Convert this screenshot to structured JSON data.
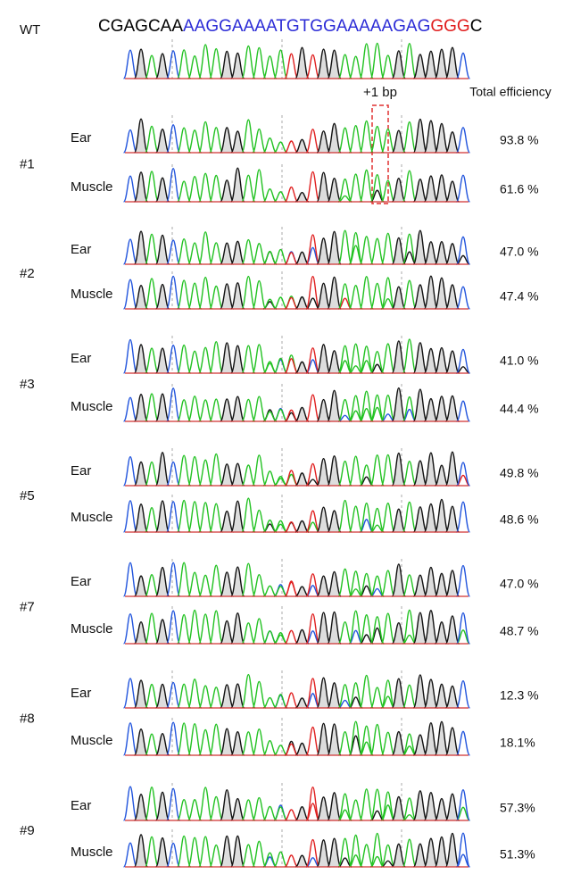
{
  "sequence": {
    "segments": [
      {
        "text": "CGAGCAA",
        "color": "#000000"
      },
      {
        "text": "AAGGAAAATGTGGAAAAAGAG",
        "color": "#2b2bd6"
      },
      {
        "text": "GGG",
        "color": "#e01b1b"
      },
      {
        "text": "C",
        "color": "#000000"
      }
    ]
  },
  "wt_label": "WT",
  "insertion_label": "+1 bp",
  "efficiency_header": "Total efficiency",
  "samples": [
    {
      "id": "#1",
      "rows": [
        {
          "tissue": "Ear",
          "efficiency": "93.8 %"
        },
        {
          "tissue": "Muscle",
          "efficiency": "61.6 %"
        }
      ]
    },
    {
      "id": "#2",
      "rows": [
        {
          "tissue": "Ear",
          "efficiency": "47.0 %"
        },
        {
          "tissue": "Muscle",
          "efficiency": "47.4 %"
        }
      ]
    },
    {
      "id": "#3",
      "rows": [
        {
          "tissue": "Ear",
          "efficiency": "41.0 %"
        },
        {
          "tissue": "Muscle",
          "efficiency": "44.4 %"
        }
      ]
    },
    {
      "id": "#5",
      "rows": [
        {
          "tissue": "Ear",
          "efficiency": "49.8 %"
        },
        {
          "tissue": "Muscle",
          "efficiency": "48.6 %"
        }
      ]
    },
    {
      "id": "#7",
      "rows": [
        {
          "tissue": "Ear",
          "efficiency": "47.0 %"
        },
        {
          "tissue": "Muscle",
          "efficiency": "48.7 %"
        }
      ]
    },
    {
      "id": "#8",
      "rows": [
        {
          "tissue": "Ear",
          "efficiency": "12.3 %"
        },
        {
          "tissue": "Muscle",
          "efficiency": "18.1%"
        }
      ]
    },
    {
      "id": "#9",
      "rows": [
        {
          "tissue": "Ear",
          "efficiency": "57.3%"
        },
        {
          "tissue": "Muscle",
          "efficiency": "51.3%"
        }
      ]
    }
  ]
}
